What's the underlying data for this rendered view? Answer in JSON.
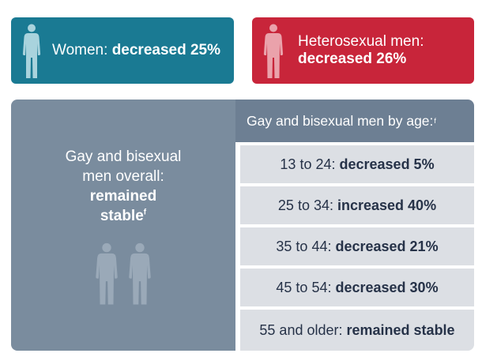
{
  "top_cards": {
    "women": {
      "label": "Women:",
      "value": "decreased 25%",
      "icon": "person-icon",
      "color": "#1a7a93"
    },
    "heterosexual_men": {
      "label": "Heterosexual men:",
      "value": "decreased 26%",
      "icon": "person-icon",
      "color": "#c8253a"
    }
  },
  "overall": {
    "line1": "Gay and bisexual",
    "line2": "men overall:",
    "value_line1": "remained",
    "value_line2": "stable",
    "footnote": "f",
    "icons": [
      "person-icon",
      "person-icon"
    ],
    "color": "#7a8c9e"
  },
  "by_age": {
    "header": "Gay and bisexual men by age:",
    "header_footnote": "f",
    "header_color": "#6d7f93",
    "row_color": "#dcdfe4",
    "rows": [
      {
        "label": "13 to 24:",
        "value": "decreased 5%"
      },
      {
        "label": "25 to 34:",
        "value": "increased 40%"
      },
      {
        "label": "35 to 44:",
        "value": "decreased 21%"
      },
      {
        "label": "45 to 54:",
        "value": "decreased 30%"
      },
      {
        "label": "55 and older:",
        "value": "remained stable"
      }
    ]
  }
}
